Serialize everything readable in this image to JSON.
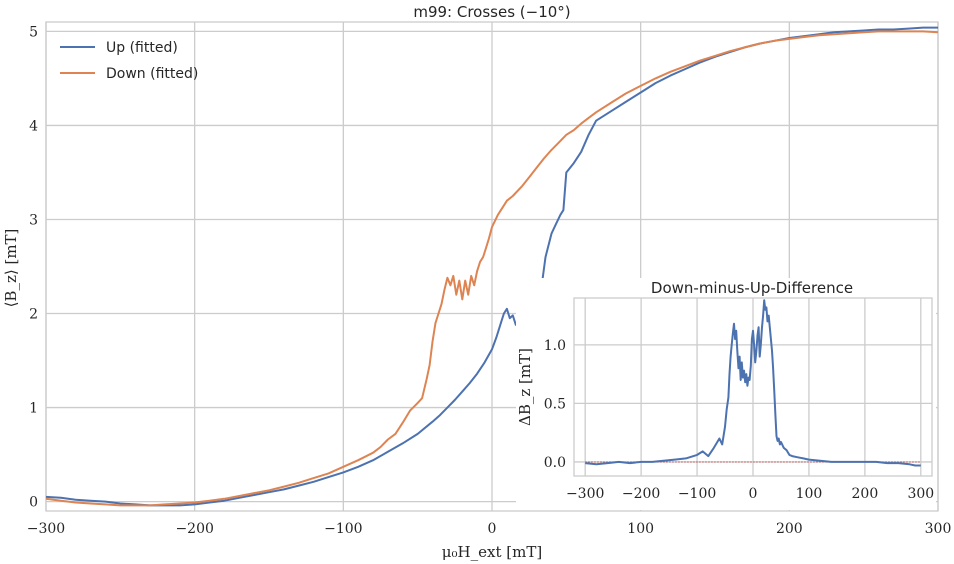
{
  "chart_data": [
    {
      "type": "line",
      "title": "m99: Crosses (−10°)",
      "xlabel": "μ₀H_ext [mT]",
      "ylabel": "⟨B_z⟩ [mT]",
      "xlim": [
        -300,
        300
      ],
      "ylim": [
        -0.1,
        5.1
      ],
      "xticks": [
        -300,
        -200,
        -100,
        0,
        100,
        200,
        300
      ],
      "xtick_labels": [
        "−300",
        "−200",
        "−100",
        "0",
        "100",
        "200",
        "300"
      ],
      "yticks": [
        0,
        1,
        2,
        3,
        4,
        5
      ],
      "ytick_labels": [
        "0",
        "1",
        "2",
        "3",
        "4",
        "5"
      ],
      "grid": true,
      "legend": "top-left",
      "series": [
        {
          "name": "Up (fitted)",
          "color": "#4c72b0",
          "x": [
            -300,
            -290,
            -280,
            -270,
            -260,
            -250,
            -240,
            -230,
            -220,
            -210,
            -200,
            -190,
            -180,
            -170,
            -160,
            -150,
            -140,
            -130,
            -120,
            -110,
            -100,
            -90,
            -80,
            -70,
            -60,
            -50,
            -40,
            -35,
            -30,
            -25,
            -20,
            -15,
            -10,
            -5,
            0,
            3,
            6,
            8,
            10,
            12,
            14,
            16,
            18,
            20,
            22,
            24,
            26,
            28,
            30,
            33,
            36,
            40,
            43,
            46,
            48,
            50,
            55,
            60,
            65,
            70,
            80,
            90,
            100,
            110,
            120,
            130,
            140,
            150,
            160,
            170,
            180,
            190,
            200,
            210,
            220,
            230,
            240,
            250,
            260,
            270,
            280,
            290,
            300
          ],
          "y": [
            0.05,
            0.04,
            0.02,
            0.01,
            0.0,
            -0.02,
            -0.03,
            -0.04,
            -0.04,
            -0.04,
            -0.03,
            -0.01,
            0.01,
            0.04,
            0.07,
            0.1,
            0.13,
            0.17,
            0.21,
            0.26,
            0.31,
            0.37,
            0.44,
            0.53,
            0.62,
            0.72,
            0.85,
            0.92,
            1.0,
            1.08,
            1.17,
            1.26,
            1.36,
            1.48,
            1.62,
            1.75,
            1.9,
            2.0,
            2.05,
            1.95,
            1.98,
            1.88,
            1.9,
            2.12,
            2.05,
            2.15,
            1.95,
            1.92,
            2.08,
            2.25,
            2.6,
            2.85,
            2.95,
            3.05,
            3.1,
            3.5,
            3.6,
            3.72,
            3.9,
            4.05,
            4.15,
            4.25,
            4.35,
            4.45,
            4.53,
            4.6,
            4.67,
            4.73,
            4.78,
            4.83,
            4.87,
            4.9,
            4.93,
            4.95,
            4.97,
            4.99,
            5.0,
            5.01,
            5.02,
            5.02,
            5.03,
            5.04,
            5.04
          ]
        },
        {
          "name": "Down (fitted)",
          "color": "#dd8452",
          "x": [
            -300,
            -290,
            -280,
            -270,
            -260,
            -250,
            -240,
            -230,
            -220,
            -210,
            -200,
            -190,
            -180,
            -170,
            -160,
            -150,
            -140,
            -130,
            -120,
            -110,
            -100,
            -90,
            -80,
            -75,
            -70,
            -65,
            -60,
            -55,
            -50,
            -47,
            -44,
            -42,
            -40,
            -38,
            -36,
            -34,
            -32,
            -30,
            -28,
            -26,
            -24,
            -22,
            -20,
            -18,
            -16,
            -14,
            -12,
            -10,
            -8,
            -6,
            -4,
            -2,
            0,
            4,
            8,
            10,
            14,
            20,
            25,
            30,
            35,
            40,
            45,
            50,
            55,
            60,
            65,
            70,
            80,
            90,
            100,
            110,
            120,
            130,
            140,
            150,
            160,
            170,
            180,
            190,
            200,
            210,
            220,
            230,
            240,
            250,
            260,
            270,
            280,
            290,
            300
          ],
          "y": [
            0.03,
            0.01,
            -0.01,
            -0.02,
            -0.03,
            -0.04,
            -0.04,
            -0.04,
            -0.03,
            -0.02,
            -0.01,
            0.01,
            0.03,
            0.06,
            0.09,
            0.12,
            0.16,
            0.2,
            0.25,
            0.3,
            0.37,
            0.44,
            0.52,
            0.58,
            0.66,
            0.72,
            0.84,
            0.97,
            1.05,
            1.1,
            1.3,
            1.45,
            1.7,
            1.9,
            2.0,
            2.1,
            2.25,
            2.38,
            2.3,
            2.4,
            2.2,
            2.35,
            2.15,
            2.35,
            2.2,
            2.4,
            2.3,
            2.45,
            2.55,
            2.6,
            2.7,
            2.8,
            2.92,
            3.05,
            3.15,
            3.2,
            3.25,
            3.35,
            3.45,
            3.55,
            3.65,
            3.74,
            3.82,
            3.9,
            3.95,
            4.02,
            4.08,
            4.14,
            4.24,
            4.34,
            4.42,
            4.5,
            4.57,
            4.63,
            4.69,
            4.74,
            4.79,
            4.83,
            4.87,
            4.9,
            4.92,
            4.94,
            4.96,
            4.97,
            4.98,
            4.99,
            5.0,
            5.0,
            5.0,
            5.0,
            4.99
          ]
        }
      ]
    },
    {
      "type": "line",
      "title": "Down-minus-Up-Difference",
      "xlabel": "",
      "ylabel": "ΔB_z [mT]",
      "xlim": [
        -320,
        320
      ],
      "ylim": [
        -0.12,
        1.4
      ],
      "xticks": [
        -300,
        -200,
        -100,
        0,
        100,
        200,
        300
      ],
      "xtick_labels": [
        "−300",
        "−200",
        "−100",
        "0",
        "100",
        "200",
        "300"
      ],
      "yticks": [
        0,
        0.5,
        1
      ],
      "ytick_labels": [
        "0.0",
        "0.5",
        "1.0"
      ],
      "grid": true,
      "reference_line": {
        "y": 0,
        "color": "#c0504d",
        "style": "dotted"
      },
      "series": [
        {
          "name": "",
          "color": "#4c72b0",
          "x": [
            -300,
            -280,
            -260,
            -240,
            -220,
            -200,
            -180,
            -160,
            -140,
            -120,
            -100,
            -90,
            -80,
            -70,
            -60,
            -55,
            -50,
            -47,
            -44,
            -42,
            -40,
            -38,
            -36,
            -34,
            -32,
            -30,
            -28,
            -26,
            -24,
            -22,
            -20,
            -18,
            -16,
            -14,
            -12,
            -10,
            -8,
            -6,
            -4,
            -2,
            0,
            2,
            4,
            6,
            8,
            10,
            12,
            14,
            16,
            18,
            20,
            22,
            24,
            26,
            28,
            30,
            32,
            34,
            36,
            38,
            40,
            42,
            44,
            46,
            48,
            50,
            55,
            60,
            65,
            70,
            80,
            90,
            100,
            120,
            140,
            160,
            180,
            200,
            220,
            240,
            260,
            280,
            290,
            300
          ],
          "y": [
            -0.01,
            -0.02,
            -0.01,
            0.0,
            -0.01,
            0.0,
            0.0,
            0.01,
            0.02,
            0.03,
            0.06,
            0.09,
            0.05,
            0.12,
            0.2,
            0.15,
            0.3,
            0.45,
            0.55,
            0.75,
            0.9,
            1.0,
            1.1,
            1.18,
            1.05,
            1.12,
            0.95,
            0.8,
            0.9,
            0.7,
            0.85,
            0.72,
            0.78,
            0.68,
            0.75,
            0.65,
            0.72,
            0.7,
            0.82,
            1.05,
            1.12,
            1.0,
            0.85,
            0.95,
            1.08,
            1.15,
            0.9,
            1.0,
            1.15,
            1.25,
            1.38,
            1.3,
            1.32,
            1.2,
            1.25,
            1.15,
            1.05,
            0.95,
            0.8,
            0.6,
            0.4,
            0.22,
            0.18,
            0.2,
            0.15,
            0.17,
            0.12,
            0.1,
            0.06,
            0.05,
            0.04,
            0.03,
            0.02,
            0.01,
            0.0,
            0.0,
            0.0,
            0.0,
            0.0,
            -0.01,
            -0.01,
            -0.02,
            -0.03,
            -0.03
          ]
        }
      ]
    }
  ]
}
